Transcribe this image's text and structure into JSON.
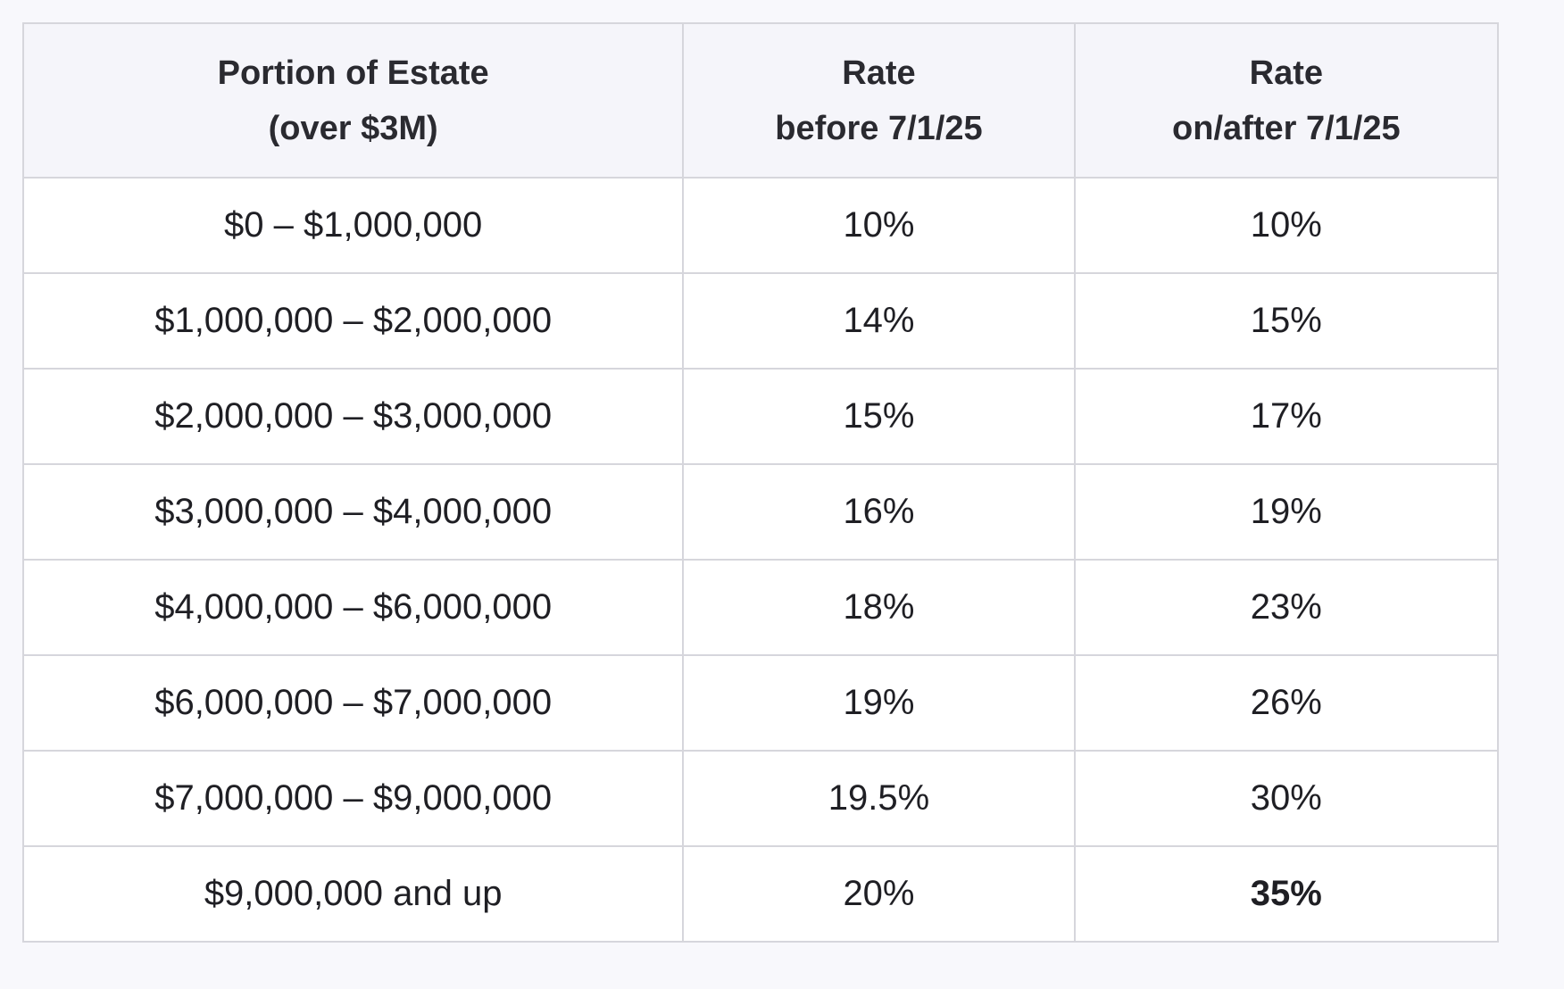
{
  "table": {
    "headers": [
      {
        "line1": "Portion of Estate",
        "line2": "(over $3M)"
      },
      {
        "line1": "Rate",
        "line2": "before 7/1/25"
      },
      {
        "line1": "Rate",
        "line2": "on/after 7/1/25"
      }
    ],
    "rows": [
      {
        "portion": "$0 – $1,000,000",
        "before": "10%",
        "after": "10%"
      },
      {
        "portion": "$1,000,000 – $2,000,000",
        "before": "14%",
        "after": "15%"
      },
      {
        "portion": "$2,000,000 – $3,000,000",
        "before": "15%",
        "after": "17%"
      },
      {
        "portion": "$3,000,000 – $4,000,000",
        "before": "16%",
        "after": "19%"
      },
      {
        "portion": "$4,000,000 – $6,000,000",
        "before": "18%",
        "after": "23%"
      },
      {
        "portion": "$6,000,000 – $7,000,000",
        "before": "19%",
        "after": "26%"
      },
      {
        "portion": "$7,000,000 – $9,000,000",
        "before": "19.5%",
        "after": "30%"
      },
      {
        "portion": "$9,000,000 and up",
        "before": "20%",
        "after": "35%"
      }
    ]
  }
}
